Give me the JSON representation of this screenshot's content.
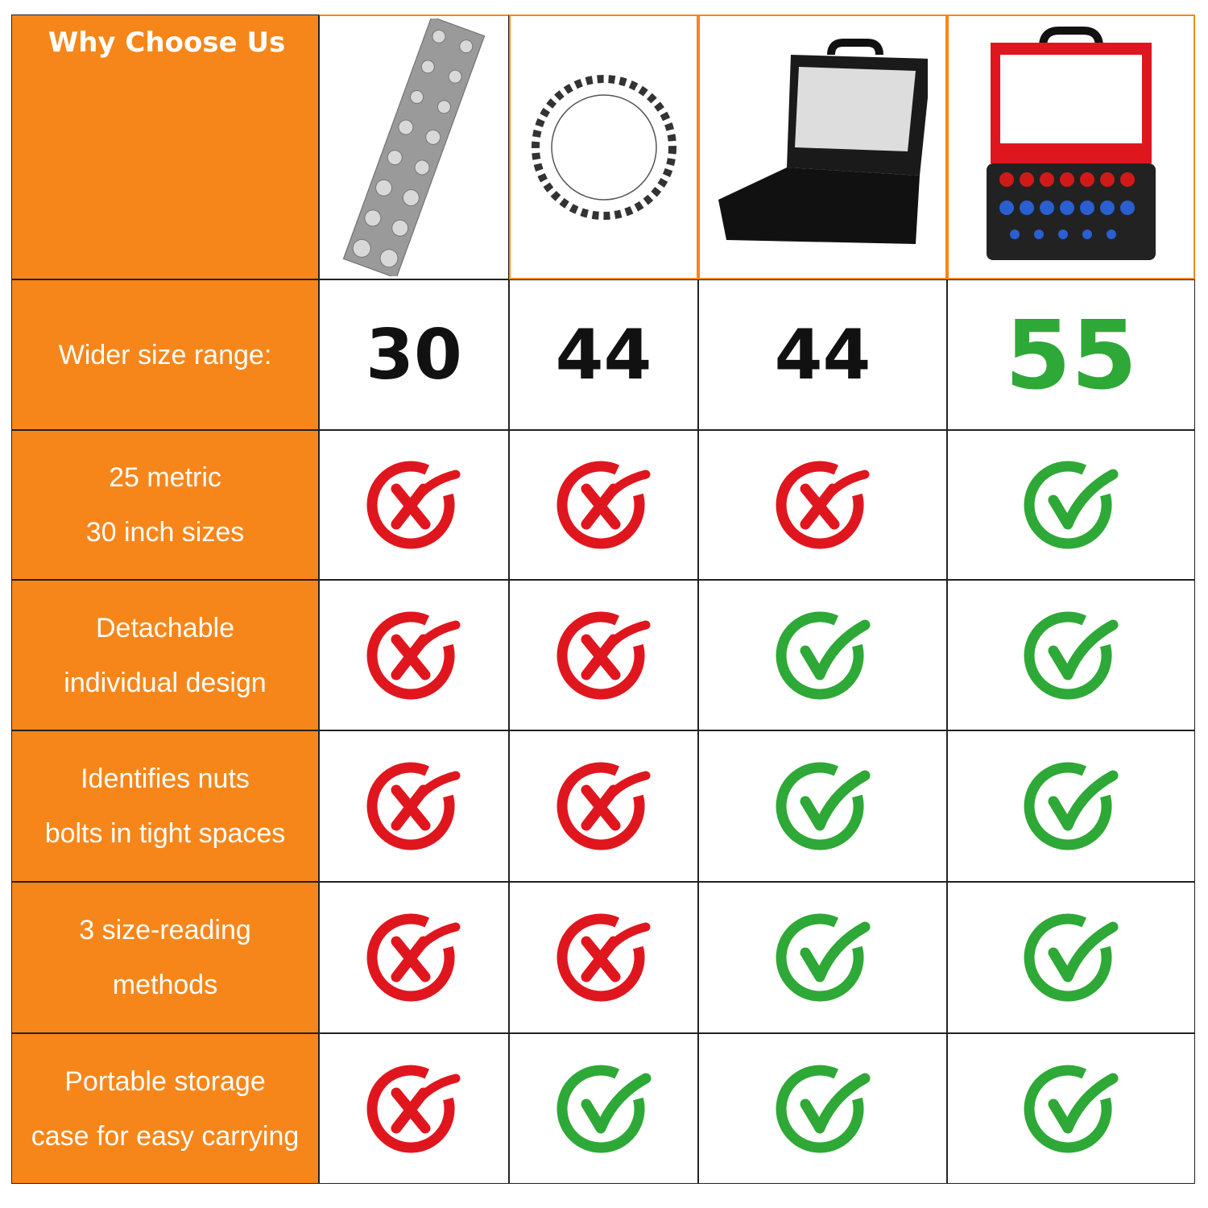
{
  "header": {
    "title": "Why Choose Us"
  },
  "products": [
    {
      "icon": "plate-checker-image"
    },
    {
      "icon": "ring-checker-image"
    },
    {
      "icon": "black-case-checker-image"
    },
    {
      "icon": "red-case-checker-image"
    }
  ],
  "size_range": {
    "label": "Wider size range:",
    "values": [
      "30",
      "44",
      "44",
      "55"
    ]
  },
  "features": [
    {
      "line1": "25 metric",
      "line2": "30 inch sizes",
      "values": [
        false,
        false,
        false,
        true
      ]
    },
    {
      "line1": "Detachable",
      "line2": "individual design",
      "values": [
        false,
        false,
        true,
        true
      ]
    },
    {
      "line1": "Identifies nuts",
      "line2": "bolts in tight spaces",
      "values": [
        false,
        false,
        true,
        true
      ]
    },
    {
      "line1": "3 size-reading",
      "line2": "methods",
      "values": [
        false,
        false,
        true,
        true
      ]
    },
    {
      "line1": "Portable storage",
      "line2": "case for easy carrying",
      "values": [
        false,
        true,
        true,
        true
      ]
    }
  ],
  "colors": {
    "orange": "#f7861a",
    "red": "#e0161e",
    "green": "#2ea836"
  }
}
